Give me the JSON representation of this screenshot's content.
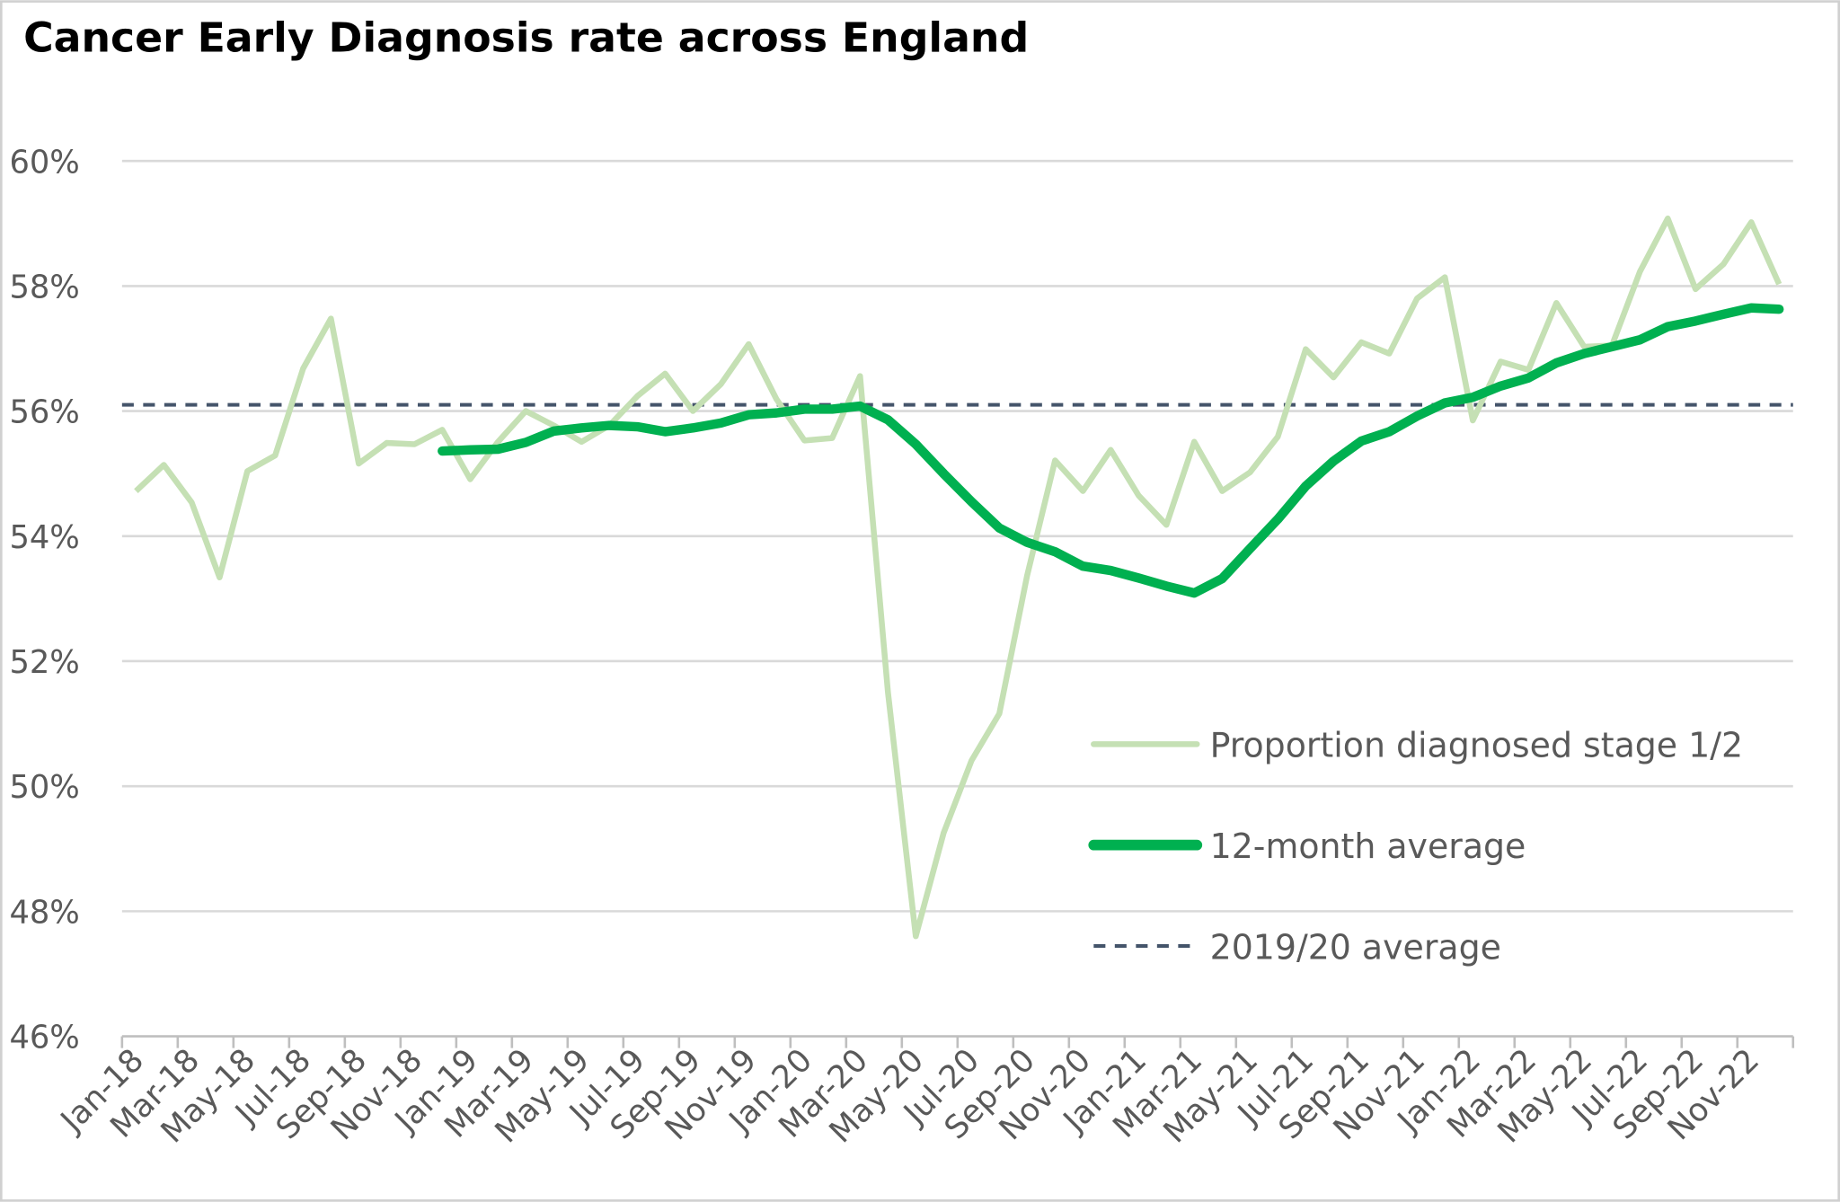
{
  "chart_data": {
    "type": "line",
    "title": "Cancer Early Diagnosis rate across England",
    "xlabel": "",
    "ylabel": "",
    "ylim": [
      46,
      60
    ],
    "yticks": [
      "46%",
      "48%",
      "50%",
      "52%",
      "54%",
      "56%",
      "58%",
      "60%"
    ],
    "ytick_values": [
      46,
      48,
      50,
      52,
      54,
      56,
      58,
      60
    ],
    "grid": "horizontal",
    "legend_position": "bottom-right (inside plot)",
    "categories": [
      "Jan-18",
      "Feb-18",
      "Mar-18",
      "Apr-18",
      "May-18",
      "Jun-18",
      "Jul-18",
      "Aug-18",
      "Sep-18",
      "Oct-18",
      "Nov-18",
      "Dec-18",
      "Jan-19",
      "Feb-19",
      "Mar-19",
      "Apr-19",
      "May-19",
      "Jun-19",
      "Jul-19",
      "Aug-19",
      "Sep-19",
      "Oct-19",
      "Nov-19",
      "Dec-19",
      "Jan-20",
      "Feb-20",
      "Mar-20",
      "Apr-20",
      "May-20",
      "Jun-20",
      "Jul-20",
      "Aug-20",
      "Sep-20",
      "Oct-20",
      "Nov-20",
      "Dec-20",
      "Jan-21",
      "Feb-21",
      "Mar-21",
      "Apr-21",
      "May-21",
      "Jun-21",
      "Jul-21",
      "Aug-21",
      "Sep-21",
      "Oct-21",
      "Nov-21",
      "Dec-21",
      "Jan-22",
      "Feb-22",
      "Mar-22",
      "Apr-22",
      "May-22",
      "Jun-22",
      "Jul-22",
      "Aug-22",
      "Sep-22",
      "Oct-22",
      "Nov-22",
      "Dec-22"
    ],
    "series": [
      {
        "name": "Proportion diagnosed stage 1/2",
        "color": "#c5e0b4",
        "values": [
          54.72,
          55.14,
          54.54,
          53.34,
          55.04,
          55.29,
          56.68,
          57.48,
          55.16,
          55.49,
          55.47,
          55.7,
          54.91,
          55.51,
          56.0,
          55.77,
          55.51,
          55.77,
          56.24,
          56.6,
          56.0,
          56.43,
          57.07,
          56.19,
          55.53,
          55.57,
          56.56,
          51.5,
          47.6,
          49.25,
          50.41,
          51.16,
          53.37,
          55.21,
          54.72,
          55.38,
          54.65,
          54.18,
          55.51,
          54.72,
          55.02,
          55.59,
          56.99,
          56.54,
          57.1,
          56.92,
          57.8,
          58.14,
          55.85,
          56.79,
          56.66,
          57.73,
          57.03,
          57.05,
          58.23,
          59.08,
          57.95,
          58.35,
          59.02,
          58.03
        ]
      },
      {
        "name": "12-month average",
        "color": "#00b050",
        "values": [
          null,
          null,
          null,
          null,
          null,
          null,
          null,
          null,
          null,
          null,
          null,
          55.36,
          55.38,
          55.39,
          55.5,
          55.68,
          55.73,
          55.77,
          55.75,
          55.67,
          55.73,
          55.81,
          55.94,
          55.97,
          56.03,
          56.03,
          56.08,
          55.86,
          55.47,
          55.0,
          54.55,
          54.13,
          53.9,
          53.75,
          53.52,
          53.45,
          53.33,
          53.2,
          53.09,
          53.32,
          53.8,
          54.27,
          54.8,
          55.2,
          55.52,
          55.67,
          55.92,
          56.13,
          56.22,
          56.4,
          56.53,
          56.77,
          56.92,
          57.03,
          57.14,
          57.35,
          57.44,
          57.55,
          57.65,
          57.63
        ]
      },
      {
        "name": "2019/20 average",
        "color": "#44546a",
        "style": "dashed",
        "value": 56.1
      }
    ]
  }
}
